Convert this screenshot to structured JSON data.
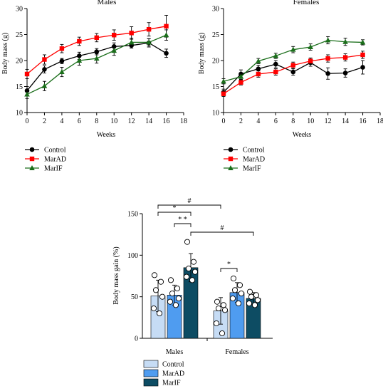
{
  "colors": {
    "control_line": "#000000",
    "marad_line": "#ff0000",
    "marif_line": "#1a6e1a",
    "control_bar": "#c6dcf5",
    "marad_bar": "#4f9cf0",
    "marif_bar": "#0d4c63"
  },
  "chart_data": [
    {
      "type": "line",
      "title": "Males",
      "xlabel": "Weeks",
      "ylabel": "Body mass (g)",
      "xlim": [
        0,
        18
      ],
      "ylim": [
        10,
        30
      ],
      "xticks": [
        0,
        2,
        4,
        6,
        8,
        10,
        12,
        14,
        16,
        18
      ],
      "yticks": [
        10,
        15,
        20,
        25,
        30
      ],
      "x": [
        0,
        2,
        4,
        6,
        8,
        10,
        12,
        14,
        16
      ],
      "series": [
        {
          "name": "Control",
          "marker": "circle",
          "color": "#000000",
          "values": [
            14.2,
            18.3,
            19.9,
            20.9,
            21.7,
            22.7,
            22.9,
            23.4,
            21.4
          ],
          "errors": [
            0.8,
            0.7,
            0.5,
            0.7,
            0.6,
            0.7,
            0.5,
            0.8,
            0.8
          ]
        },
        {
          "name": "MarAD",
          "marker": "square",
          "color": "#ff0000",
          "values": [
            17.4,
            20.2,
            22.3,
            23.7,
            24.4,
            24.9,
            25.3,
            26.0,
            26.6
          ],
          "errors": [
            0.9,
            0.9,
            0.8,
            0.8,
            0.8,
            1.0,
            1.2,
            1.3,
            2.1
          ]
        },
        {
          "name": "MarIF",
          "marker": "triangle",
          "color": "#1a6e1a",
          "values": [
            13.5,
            15.1,
            17.8,
            20.0,
            20.4,
            21.9,
            23.5,
            23.5,
            24.9
          ],
          "errors": [
            0.8,
            0.9,
            0.9,
            0.9,
            0.9,
            0.9,
            0.8,
            0.7,
            1.0
          ]
        }
      ]
    },
    {
      "type": "line",
      "title": "Females",
      "xlabel": "Weeks",
      "ylabel": "Body mass (g)",
      "xlim": [
        0,
        18
      ],
      "ylim": [
        10,
        30
      ],
      "xticks": [
        0,
        2,
        4,
        6,
        8,
        10,
        12,
        14,
        16,
        18
      ],
      "yticks": [
        10,
        15,
        20,
        25,
        30
      ],
      "x": [
        0,
        2,
        4,
        6,
        8,
        10,
        12,
        14,
        16
      ],
      "series": [
        {
          "name": "Control",
          "marker": "circle",
          "color": "#000000",
          "values": [
            13.9,
            17.4,
            18.4,
            19.3,
            17.8,
            19.6,
            17.5,
            17.6,
            18.7
          ],
          "errors": [
            0.6,
            0.8,
            0.7,
            0.7,
            0.6,
            0.7,
            1.1,
            0.8,
            1.3
          ]
        },
        {
          "name": "MarAD",
          "marker": "square",
          "color": "#ff0000",
          "values": [
            13.6,
            15.8,
            17.4,
            17.8,
            19.1,
            19.9,
            20.4,
            20.6,
            21.1
          ],
          "errors": [
            0.5,
            0.5,
            0.6,
            0.6,
            0.6,
            0.6,
            0.7,
            0.7,
            0.7
          ]
        },
        {
          "name": "MarIF",
          "marker": "triangle",
          "color": "#1a6e1a",
          "values": [
            16.0,
            16.9,
            19.9,
            20.9,
            22.1,
            22.6,
            23.9,
            23.6,
            23.5
          ],
          "errors": [
            0.5,
            0.5,
            0.5,
            0.5,
            0.6,
            0.6,
            0.7,
            0.7,
            0.5
          ]
        }
      ]
    },
    {
      "type": "bar",
      "xlabel": "",
      "ylabel": "Body mass gain (%)",
      "ylim": [
        0,
        150
      ],
      "yticks": [
        0,
        50,
        100,
        150
      ],
      "categories": [
        "Males",
        "Females"
      ],
      "series": [
        {
          "name": "Control",
          "color": "#c6dcf5",
          "values": [
            51,
            33
          ],
          "errors": [
            19,
            16
          ],
          "points": [
            [
              76,
              68,
              58,
              50,
              36,
              30
            ],
            [
              44,
              40,
              36,
              34,
              18,
              6
            ]
          ]
        },
        {
          "name": "MarAD",
          "color": "#4f9cf0",
          "values": [
            52,
            55
          ],
          "errors": [
            12,
            12
          ],
          "points": [
            [
              70,
              60,
              54,
              48,
              44,
              40
            ],
            [
              72,
              64,
              58,
              54,
              48,
              42
            ]
          ]
        },
        {
          "name": "MarIF",
          "color": "#0d4c63",
          "values": [
            85,
            48
          ],
          "errors": [
            17,
            7
          ],
          "points": [
            [
              116,
              92,
              84,
              80,
              74,
              70
            ],
            [
              56,
              52,
              50,
              46,
              42,
              40
            ]
          ]
        }
      ],
      "significance": [
        {
          "label": "#",
          "between": [
            "Males Control",
            "Females Control"
          ]
        },
        {
          "label": "*",
          "between": [
            "Males Control",
            "Males MarIF"
          ]
        },
        {
          "label": "* *",
          "between": [
            "Males MarAD",
            "Males MarIF"
          ]
        },
        {
          "label": "#",
          "between": [
            "Males MarIF",
            "Females MarIF"
          ]
        },
        {
          "label": "*",
          "between": [
            "Females Control",
            "Females MarAD"
          ]
        }
      ]
    }
  ]
}
